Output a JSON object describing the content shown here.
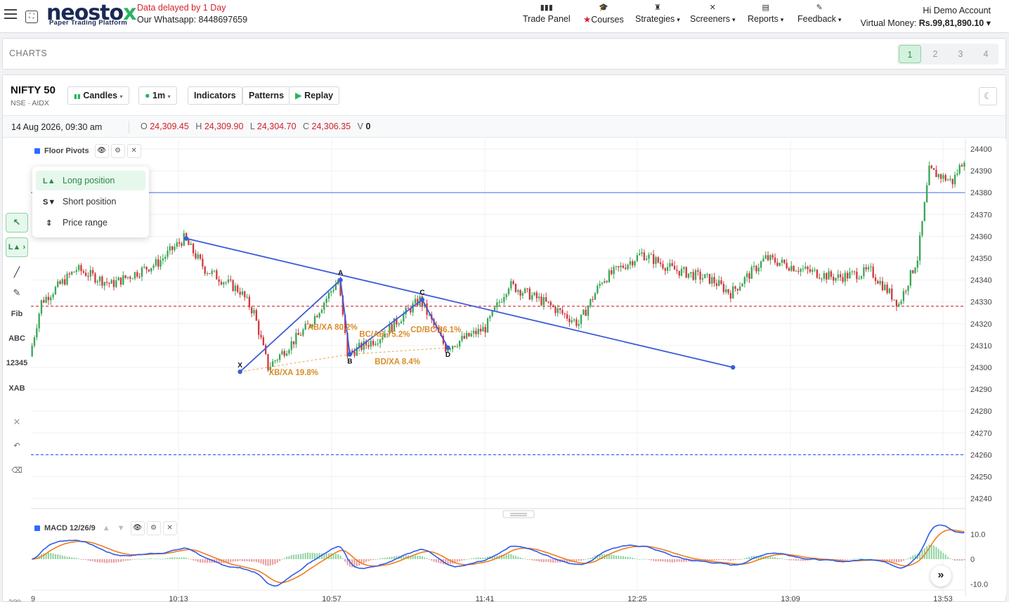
{
  "header": {
    "logo_main": "neosto",
    "logo_x": "x",
    "logo_sub": "Paper Trading Platform",
    "delay_notice": "Data delayed by 1 Day",
    "whatsapp": "Our Whatsapp: 8448697659",
    "nav": [
      {
        "label": "Trade Panel",
        "icon": "bar-chart-icon",
        "glyph": "▮▮▮"
      },
      {
        "label": "Courses",
        "icon": "graduation-cap-icon",
        "glyph": "🎓"
      },
      {
        "label": "Strategies",
        "icon": "chess-icon",
        "glyph": "♜"
      },
      {
        "label": "Screeners",
        "icon": "filter-icon",
        "glyph": "✕"
      },
      {
        "label": "Reports",
        "icon": "document-icon",
        "glyph": "▤"
      },
      {
        "label": "Feedback",
        "icon": "pen-icon",
        "glyph": "✎"
      }
    ],
    "account_greeting": "Hi Demo Account",
    "virtual_money_label": "Virtual Money: ",
    "virtual_money_value": "Rs.99,81,890.10"
  },
  "charts_bar": {
    "title": "CHARTS",
    "pages": [
      "1",
      "2",
      "3",
      "4"
    ],
    "active_page": "1"
  },
  "chart_header": {
    "symbol": "NIFTY 50",
    "exchange": "NSE · AIDX",
    "buttons": {
      "chart_type": "Candles",
      "interval": "1m",
      "indicators": "Indicators",
      "patterns": "Patterns",
      "replay": "Replay"
    },
    "theme_glyph": "☾"
  },
  "ohlc": {
    "date": "14 Aug 2026, 09:30 am",
    "o_label": "O",
    "o": "24,309.45",
    "h_label": "H",
    "h": "24,309.90",
    "l_label": "L",
    "l": "24,304.70",
    "c_label": "C",
    "c": "24,306.35",
    "v_label": "V",
    "v": "0"
  },
  "toolbar": {
    "fib": "Fib",
    "abc": "ABC",
    "numbers": "12345",
    "xab": "XAB",
    "long_short": "L▲"
  },
  "indicator_legend": {
    "name": "Floor Pivots"
  },
  "position_menu": {
    "items": [
      {
        "icon": "L▲",
        "label": "Long position"
      },
      {
        "icon": "S▼",
        "label": "Short position"
      },
      {
        "icon": "⇕",
        "label": "Price range"
      }
    ]
  },
  "macd_legend": {
    "name": "MACD 12/26/9"
  },
  "chart_data": {
    "type": "candlestick",
    "y_axis": {
      "ylim": [
        24235,
        24405
      ],
      "ticks": [
        24400,
        24390,
        24380,
        24370,
        24360,
        24350,
        24340,
        24330,
        24320,
        24310,
        24300,
        24290,
        24280,
        24270,
        24260,
        24250,
        24240
      ]
    },
    "x_axis": {
      "ticks": [
        "10:13",
        "10:57",
        "11:41",
        "12:25",
        "13:09",
        "13:53"
      ],
      "left_partial": "9",
      "bottom_left_partial": "2/30"
    },
    "pivot_levels": [
      {
        "value": 24380,
        "style": "solid",
        "color": "#5b7cff"
      },
      {
        "value": 24328,
        "style": "dashed",
        "color": "#d2232a"
      },
      {
        "value": 24260,
        "style": "dashed",
        "color": "#2f6bff"
      }
    ],
    "trendline": {
      "from": {
        "bar": 66,
        "value": 24359
      },
      "to": {
        "bar": 300,
        "value": 24300
      }
    },
    "xabcd": {
      "points": [
        {
          "label": "X",
          "bar": 89,
          "value": 24298
        },
        {
          "label": "A",
          "bar": 132,
          "value": 24340
        },
        {
          "label": "B",
          "bar": 136,
          "value": 24306
        },
        {
          "label": "C",
          "bar": 167,
          "value": 24331
        },
        {
          "label": "D",
          "bar": 178,
          "value": 24309
        }
      ],
      "ratios": [
        "AB/XA 80.2%",
        "BC/AB 75.2%",
        "CD/BC 86.1%",
        "XB/XA 19.8%",
        "BD/XA 8.4%"
      ]
    },
    "candles": {
      "count": 400,
      "anchors": [
        [
          0,
          24305
        ],
        [
          5,
          24330
        ],
        [
          20,
          24345
        ],
        [
          35,
          24338
        ],
        [
          55,
          24348
        ],
        [
          66,
          24359
        ],
        [
          75,
          24345
        ],
        [
          90,
          24335
        ],
        [
          96,
          24325
        ],
        [
          102,
          24300
        ],
        [
          120,
          24320
        ],
        [
          132,
          24340
        ],
        [
          136,
          24306
        ],
        [
          150,
          24314
        ],
        [
          167,
          24331
        ],
        [
          178,
          24309
        ],
        [
          195,
          24318
        ],
        [
          205,
          24338
        ],
        [
          220,
          24330
        ],
        [
          235,
          24320
        ],
        [
          245,
          24340
        ],
        [
          262,
          24352
        ],
        [
          275,
          24345
        ],
        [
          292,
          24340
        ],
        [
          300,
          24334
        ],
        [
          315,
          24350
        ],
        [
          330,
          24345
        ],
        [
          345,
          24341
        ],
        [
          360,
          24344
        ],
        [
          372,
          24329
        ],
        [
          380,
          24350
        ],
        [
          385,
          24390
        ],
        [
          395,
          24385
        ],
        [
          400,
          24396
        ]
      ]
    },
    "macd": {
      "name": "MACD 12/26/9",
      "ylim": [
        -13,
        14
      ],
      "ticks": [
        "10.0",
        "0",
        "-10.0"
      ]
    }
  }
}
